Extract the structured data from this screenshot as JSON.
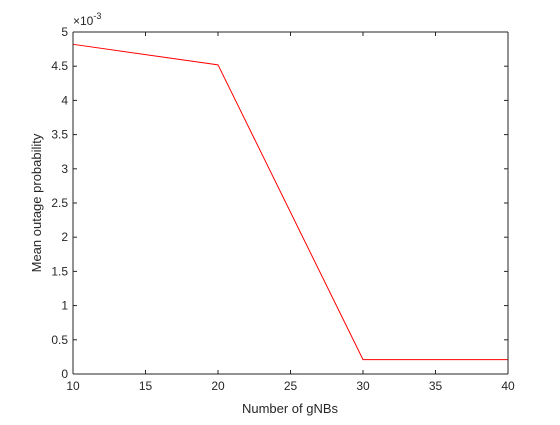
{
  "chart_data": {
    "type": "line",
    "title": "",
    "xlabel": "Number of gNBs",
    "ylabel": "Mean outage probability",
    "xlim": [
      10,
      40
    ],
    "ylim": [
      0,
      5
    ],
    "x_ticks": [
      10,
      15,
      20,
      25,
      30,
      35,
      40
    ],
    "y_ticks": [
      0,
      0.5,
      1,
      1.5,
      2,
      2.5,
      3,
      3.5,
      4,
      4.5,
      5
    ],
    "y_exponent_label": "×10",
    "y_exponent_power": "-3",
    "grid": false,
    "legend": "none",
    "series": [
      {
        "color": "#ff0000",
        "x": [
          10,
          20,
          30,
          40
        ],
        "y": [
          4.82,
          4.52,
          0.21,
          0.21
        ]
      }
    ]
  }
}
